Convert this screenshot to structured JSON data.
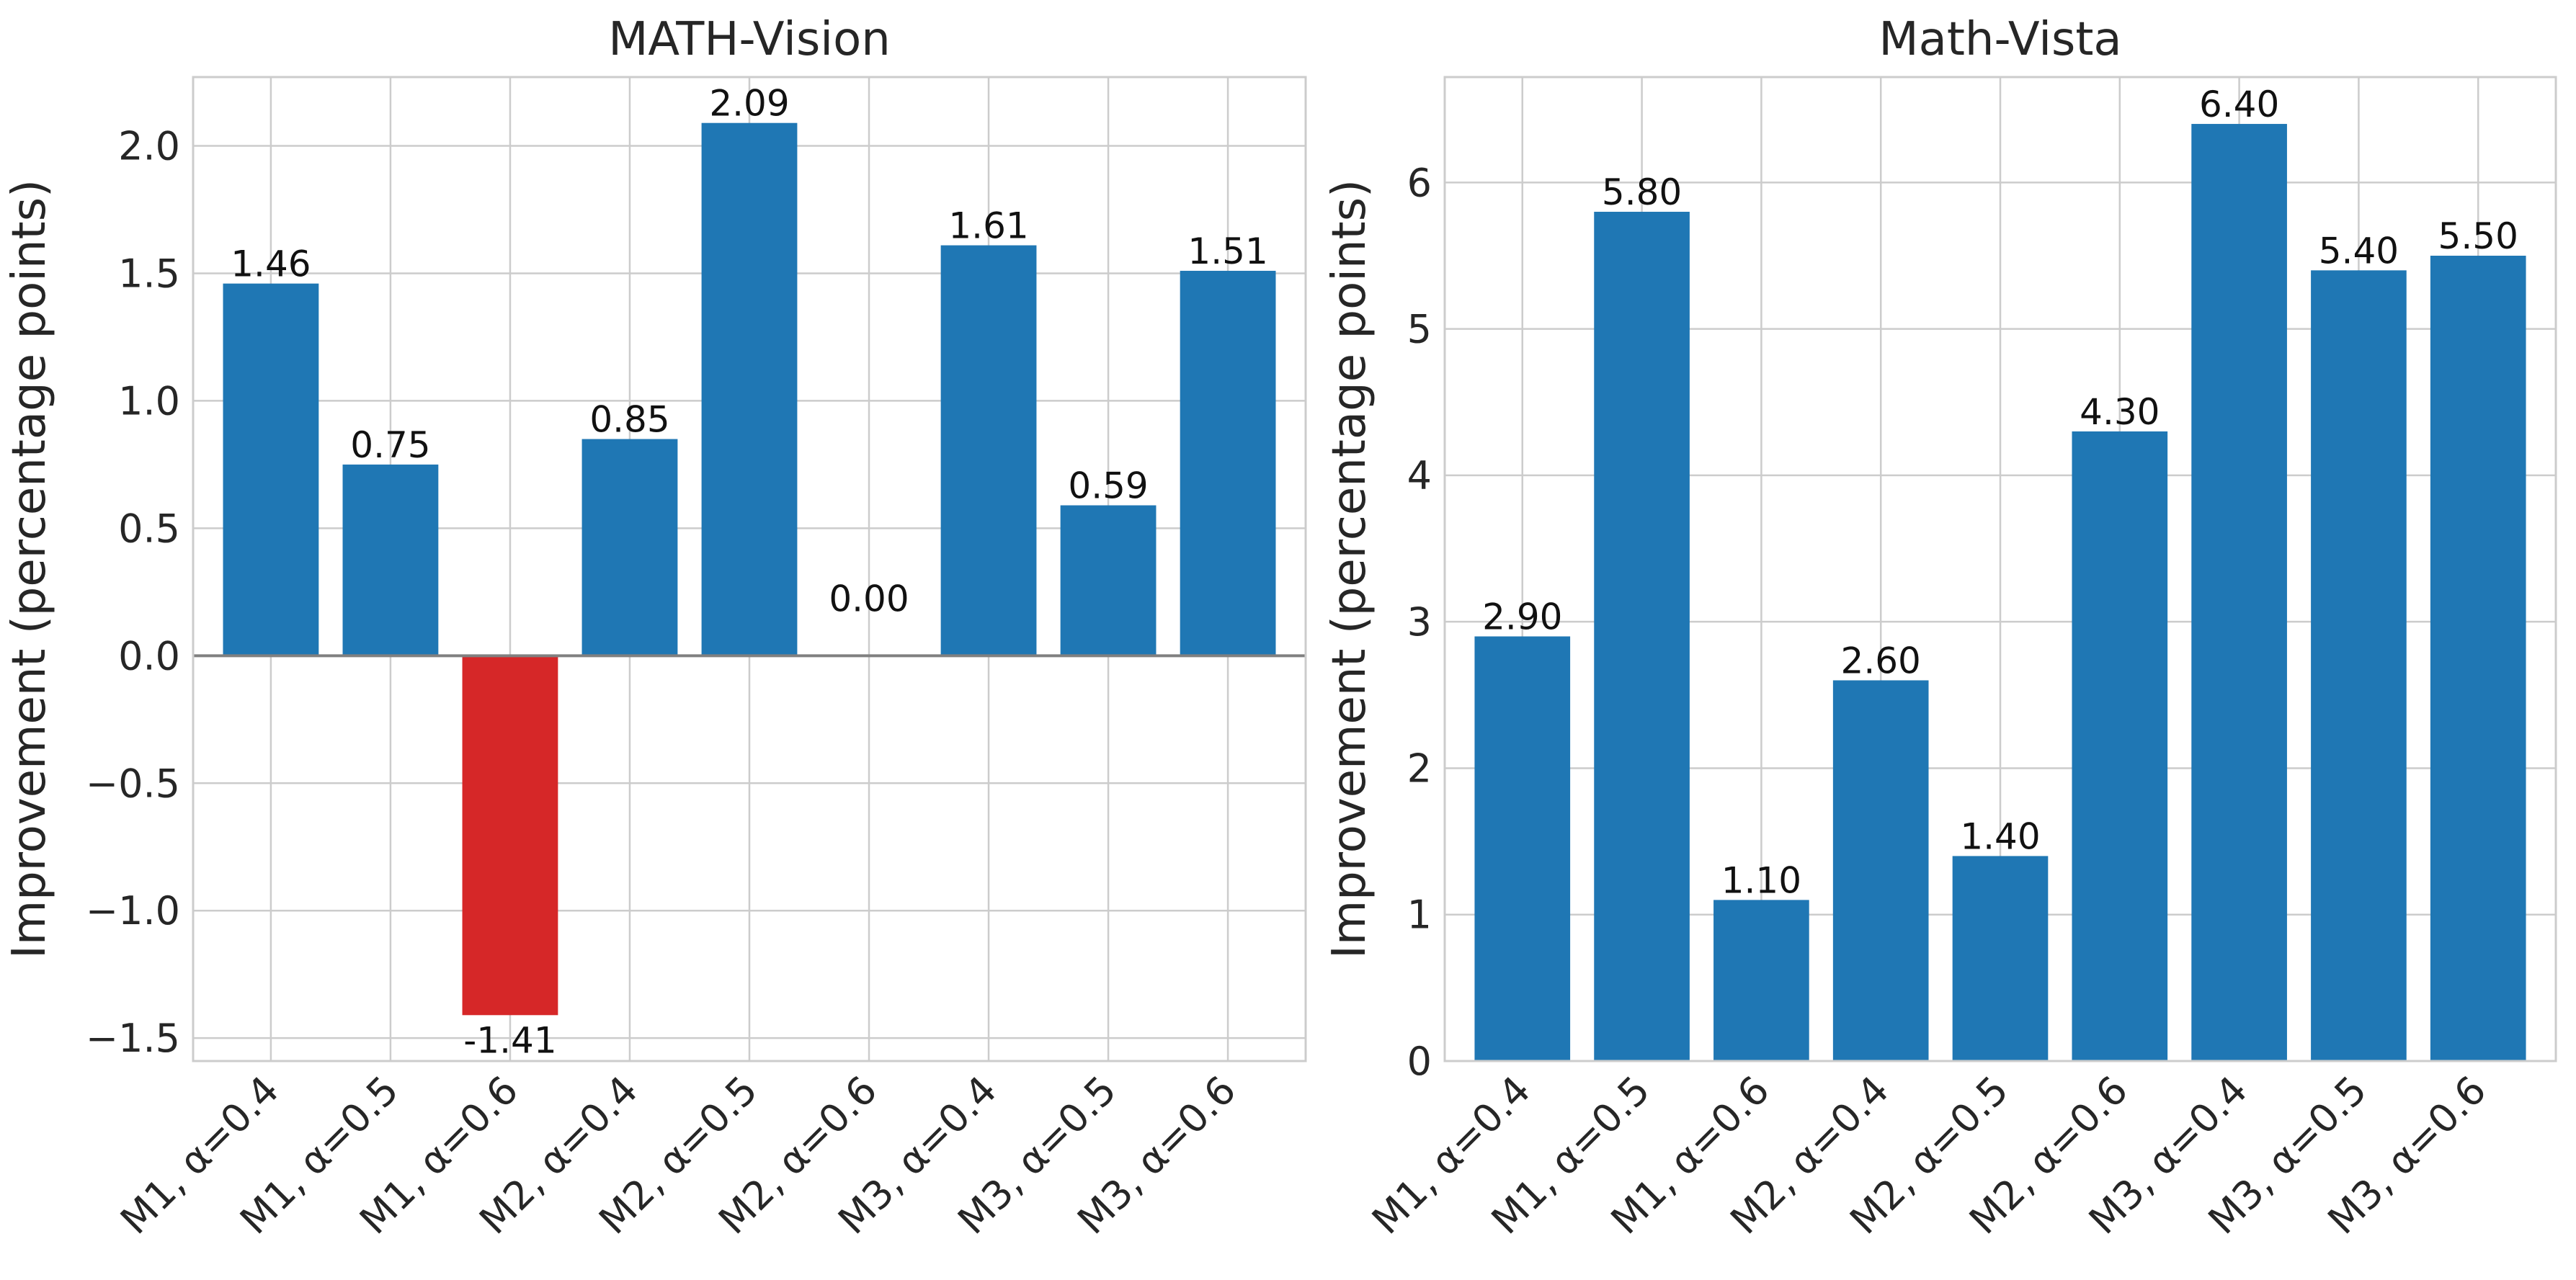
{
  "chart_data": [
    {
      "type": "bar",
      "title": "MATH-Vision",
      "xlabel": "",
      "ylabel": "Improvement (percentage points)",
      "categories": [
        "M1, α=0.4",
        "M1, α=0.5",
        "M1, α=0.6",
        "M2, α=0.4",
        "M2, α=0.5",
        "M2, α=0.6",
        "M3, α=0.4",
        "M3, α=0.5",
        "M3, α=0.6"
      ],
      "values": [
        1.46,
        0.75,
        -1.41,
        0.85,
        2.09,
        0.0,
        1.61,
        0.59,
        1.51
      ],
      "data_labels": [
        "1.46",
        "0.75",
        "-1.41",
        "0.85",
        "2.09",
        "0.00",
        "1.61",
        "0.59",
        "1.51"
      ],
      "ylim": [
        -1.59,
        2.27
      ],
      "yticks": [
        -1.5,
        -1.0,
        -0.5,
        0.0,
        0.5,
        1.0,
        1.5,
        2.0
      ],
      "ytick_labels": [
        "−1.5",
        "−1.0",
        "−0.5",
        "0.0",
        "0.5",
        "1.0",
        "1.5",
        "2.0"
      ],
      "grid": true,
      "zero_line": true,
      "colors": {
        "positive": "#1f77b4",
        "negative": "#d62728"
      }
    },
    {
      "type": "bar",
      "title": "Math-Vista",
      "xlabel": "",
      "ylabel": "Improvement (percentage points)",
      "categories": [
        "M1, α=0.4",
        "M1, α=0.5",
        "M1, α=0.6",
        "M2, α=0.4",
        "M2, α=0.5",
        "M2, α=0.6",
        "M3, α=0.4",
        "M3, α=0.5",
        "M3, α=0.6"
      ],
      "values": [
        2.9,
        5.8,
        1.1,
        2.6,
        1.4,
        4.3,
        6.4,
        5.4,
        5.5
      ],
      "data_labels": [
        "2.90",
        "5.80",
        "1.10",
        "2.60",
        "1.40",
        "4.30",
        "6.40",
        "5.40",
        "5.50"
      ],
      "ylim": [
        0,
        6.72
      ],
      "yticks": [
        0,
        1,
        2,
        3,
        4,
        5,
        6
      ],
      "ytick_labels": [
        "0",
        "1",
        "2",
        "3",
        "4",
        "5",
        "6"
      ],
      "grid": true,
      "zero_line": false,
      "colors": {
        "positive": "#1f77b4",
        "negative": "#d62728"
      }
    }
  ]
}
